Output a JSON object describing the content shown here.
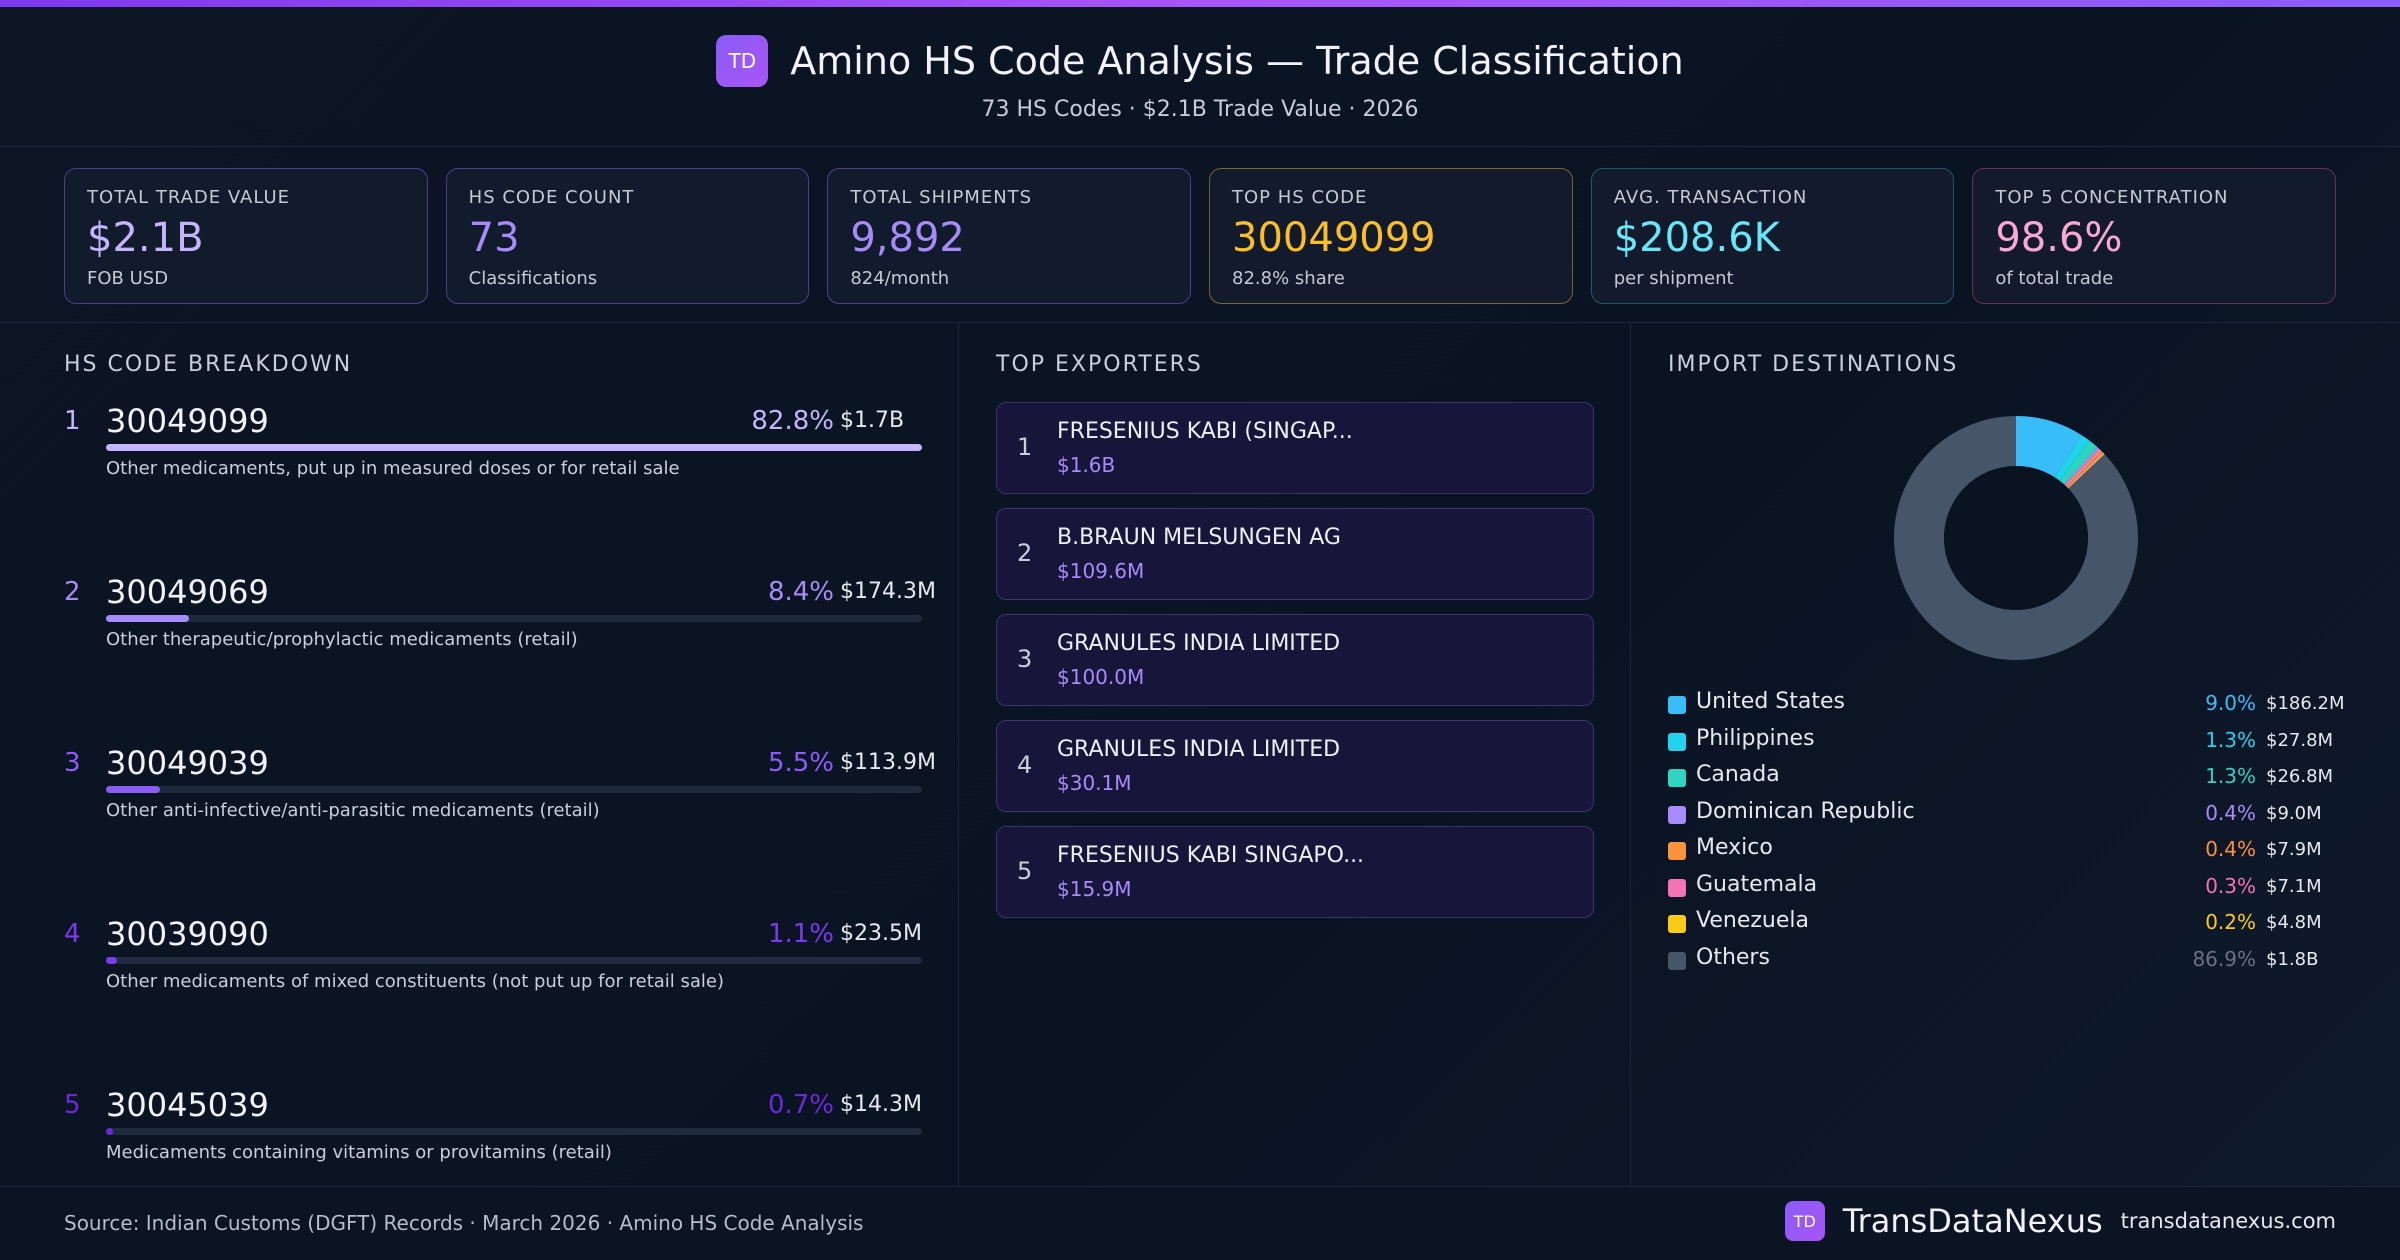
{
  "header": {
    "logo": "TD",
    "title": "Amino HS Code Analysis — Trade Classification",
    "subtitle": "73 HS Codes · $2.1B Trade Value · 2026"
  },
  "kpis": [
    {
      "label": "TOTAL TRADE VALUE",
      "value": "$2.1B",
      "sub": "FOB USD",
      "color": "#c4b5fd",
      "border": "#4c3f8f"
    },
    {
      "label": "HS CODE COUNT",
      "value": "73",
      "sub": "Classifications",
      "color": "#a78bfa",
      "border": "#4c3f8f"
    },
    {
      "label": "TOTAL SHIPMENTS",
      "value": "9,892",
      "sub": "824/month",
      "color": "#a78bfa",
      "border": "#4c3f8f"
    },
    {
      "label": "TOP HS CODE",
      "value": "30049099",
      "sub": "82.8% share",
      "color": "#fbbf24",
      "border": "#7a6428"
    },
    {
      "label": "AVG. TRANSACTION",
      "value": "$208.6K",
      "sub": "per shipment",
      "color": "#67e8f9",
      "border": "#1f5a6b"
    },
    {
      "label": "TOP 5 CONCENTRATION",
      "value": "98.6%",
      "sub": "of total trade",
      "color": "#f9a8d4",
      "border": "#6e2e52"
    }
  ],
  "sections": {
    "hs": "HS CODE BREAKDOWN",
    "exporters": "TOP EXPORTERS",
    "destinations": "IMPORT DESTINATIONS"
  },
  "exporters": [
    {
      "rank": "1",
      "name": "FRESENIUS KABI (SINGAP...",
      "value": "$1.6B"
    },
    {
      "rank": "2",
      "name": "B.BRAUN MELSUNGEN AG",
      "value": "$109.6M"
    },
    {
      "rank": "3",
      "name": "GRANULES INDIA LIMITED",
      "value": "$100.0M"
    },
    {
      "rank": "4",
      "name": "GRANULES INDIA LIMITED",
      "value": "$30.1M"
    },
    {
      "rank": "5",
      "name": "FRESENIUS KABI SINGAPO...",
      "value": "$15.9M"
    }
  ],
  "chart_data": [
    {
      "type": "bar",
      "title": "HS CODE BREAKDOWN",
      "categories": [
        "30049099",
        "30049069",
        "30049039",
        "30039090",
        "30045039"
      ],
      "ranks": [
        "1",
        "2",
        "3",
        "4",
        "5"
      ],
      "descriptions": [
        "Other medicaments, put up in measured doses or for retail sale",
        "Other therapeutic/prophylactic medicaments (retail)",
        "Other anti-infective/anti-parasitic medicaments (retail)",
        "Other medicaments of mixed constituents (not put up for retail sale)",
        "Medicaments containing vitamins or provitamins (retail)"
      ],
      "values": [
        82.8,
        8.4,
        5.5,
        1.1,
        0.7
      ],
      "value_labels": [
        "82.8%",
        "8.4%",
        "5.5%",
        "1.1%",
        "0.7%"
      ],
      "amounts": [
        "$1.7B",
        "$174.3M",
        "$113.9M",
        "$23.5M",
        "$14.3M"
      ],
      "colors": [
        "#c4b5fd",
        "#a78bfa",
        "#8b5cf6",
        "#7c3aed",
        "#6d28d9"
      ],
      "ylim": [
        0,
        100
      ]
    },
    {
      "type": "pie",
      "title": "IMPORT DESTINATIONS",
      "labels": [
        "United States",
        "Philippines",
        "Canada",
        "Dominican Republic",
        "Mexico",
        "Guatemala",
        "Venezuela",
        "Others"
      ],
      "values": [
        9.0,
        1.3,
        1.3,
        0.4,
        0.4,
        0.3,
        0.2,
        86.9
      ],
      "value_labels": [
        "9.0%",
        "1.3%",
        "1.3%",
        "0.4%",
        "0.4%",
        "0.3%",
        "0.2%",
        "86.9%"
      ],
      "amounts": [
        "$186.2M",
        "$27.8M",
        "$26.8M",
        "$9.0M",
        "$7.9M",
        "$7.1M",
        "$4.8M",
        "$1.8B"
      ],
      "colors": [
        "#38bdf8",
        "#22d3ee",
        "#2dd4bf",
        "#a78bfa",
        "#fb923c",
        "#f472b6",
        "#facc15",
        "#475569"
      ],
      "legend": "below"
    }
  ],
  "footer": {
    "source": "Source: Indian Customs (DGFT) Records · March 2026 · Amino HS Code Analysis",
    "badge": "TD",
    "brand": "TransDataNexus",
    "url": "transdatanexus.com"
  }
}
